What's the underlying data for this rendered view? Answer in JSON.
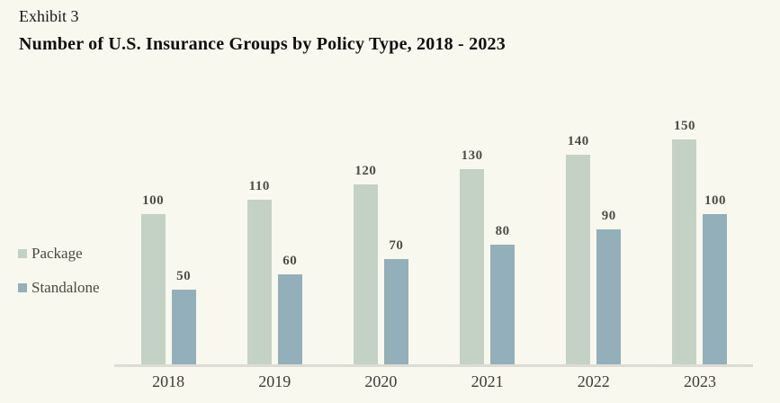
{
  "header": {
    "exhibit_label": "Exhibit 3",
    "title": "Number of U.S. Insurance Groups by Policy Type, 2018 - 2023"
  },
  "legend": {
    "position": "left",
    "items": [
      {
        "label": "Package",
        "color": "#c3d2c4"
      },
      {
        "label": "Standalone",
        "color": "#92afba"
      }
    ]
  },
  "chart_data": {
    "type": "bar",
    "title": "Number of U.S. Insurance Groups by Policy Type, 2018 - 2023",
    "categories": [
      "2018",
      "2019",
      "2020",
      "2021",
      "2022",
      "2023"
    ],
    "series": [
      {
        "name": "Package",
        "color": "#c3d2c4",
        "values": [
          100,
          110,
          120,
          130,
          140,
          150
        ]
      },
      {
        "name": "Standalone",
        "color": "#92afba",
        "values": [
          50,
          60,
          70,
          80,
          90,
          100
        ]
      }
    ],
    "xlabel": "",
    "ylabel": "",
    "ylim": [
      0,
      150
    ],
    "grid": false,
    "y_axis_visible": false,
    "data_labels": true,
    "legend_position": "left"
  },
  "colors": {
    "background": "#f9f8ef",
    "package_bar": "#c3d2c4",
    "standalone_bar": "#92afba",
    "axis_line": "#dcdbd4",
    "title_text": "#101010",
    "value_label_text": "#4e4d46",
    "tick_label_text": "#3d3c39",
    "legend_text": "#4a4942"
  }
}
